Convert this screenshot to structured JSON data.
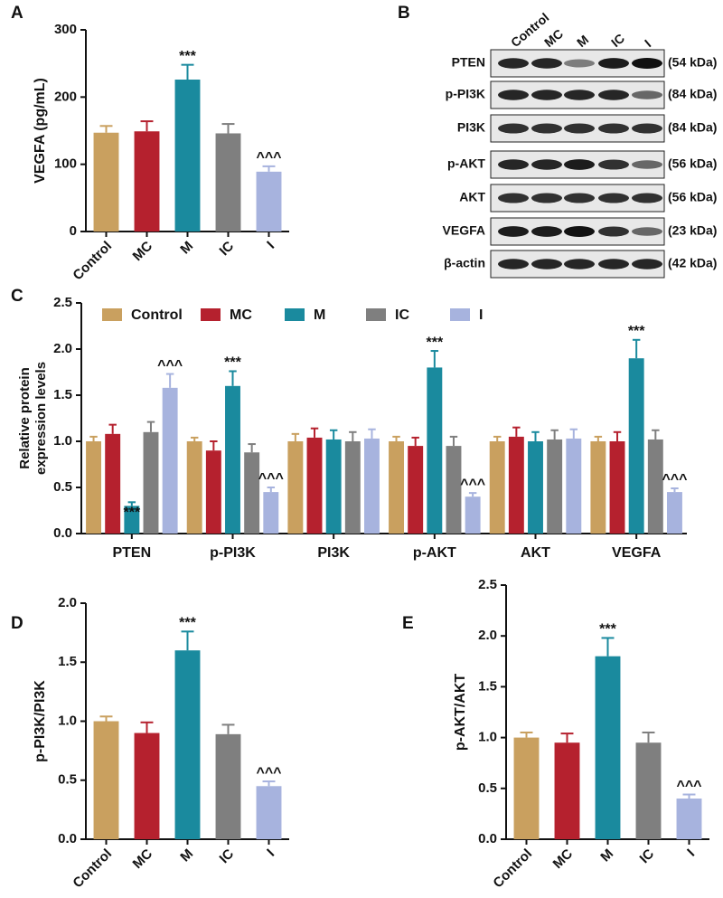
{
  "chart_data": [
    {
      "type": "bar",
      "panel": "A",
      "ylabel": "VEGFA (pg/mL)",
      "categories": [
        "Control",
        "MC",
        "M",
        "IC",
        "I"
      ],
      "values": [
        147,
        149,
        226,
        146,
        89
      ],
      "errors": [
        10,
        15,
        22,
        14,
        8
      ],
      "annotations": [
        null,
        null,
        "***",
        null,
        "^^^"
      ],
      "colors": [
        "#c9a05f",
        "#b5212e",
        "#1a8a9e",
        "#7f7f7f",
        "#a7b3de"
      ],
      "ylim": [
        0,
        300
      ],
      "yticks": [
        0,
        100,
        200,
        300
      ]
    },
    {
      "type": "grouped-bar",
      "panel": "C",
      "ylabel": [
        "Relative protein",
        "expression levels"
      ],
      "categories": [
        "PTEN",
        "p-PI3K",
        "PI3K",
        "p-AKT",
        "AKT",
        "VEGFA"
      ],
      "series": [
        {
          "name": "Control",
          "color": "#c9a05f",
          "values": [
            1.0,
            1.0,
            1.0,
            1.0,
            1.0,
            1.0
          ],
          "errors": [
            0.05,
            0.04,
            0.08,
            0.05,
            0.05,
            0.05
          ],
          "annotations": [
            null,
            null,
            null,
            null,
            null,
            null
          ]
        },
        {
          "name": "MC",
          "color": "#b5212e",
          "values": [
            1.08,
            0.9,
            1.04,
            0.95,
            1.05,
            1.0
          ],
          "errors": [
            0.1,
            0.1,
            0.1,
            0.09,
            0.1,
            0.1
          ],
          "annotations": [
            null,
            null,
            null,
            null,
            null,
            null
          ]
        },
        {
          "name": "M",
          "color": "#1a8a9e",
          "values": [
            0.3,
            1.6,
            1.02,
            1.8,
            1.0,
            1.9
          ],
          "errors": [
            0.04,
            0.16,
            0.1,
            0.18,
            0.1,
            0.2
          ],
          "annotations": [
            "***",
            "***",
            null,
            "***",
            null,
            "***"
          ]
        },
        {
          "name": "IC",
          "color": "#7f7f7f",
          "values": [
            1.1,
            0.88,
            1.0,
            0.95,
            1.02,
            1.02
          ],
          "errors": [
            0.11,
            0.09,
            0.1,
            0.1,
            0.1,
            0.1
          ],
          "annotations": [
            null,
            null,
            null,
            null,
            null,
            null
          ]
        },
        {
          "name": "I",
          "color": "#a7b3de",
          "values": [
            1.58,
            0.45,
            1.03,
            0.4,
            1.03,
            0.45
          ],
          "errors": [
            0.15,
            0.05,
            0.1,
            0.04,
            0.1,
            0.04
          ],
          "annotations": [
            "^^^",
            "^^^",
            null,
            "^^^",
            null,
            "^^^"
          ]
        }
      ],
      "legend": "top",
      "ylim": [
        0,
        2.5
      ],
      "yticks": [
        {
          "value": 0,
          "label": "0.0"
        },
        0.5,
        {
          "value": 1,
          "label": "1.0"
        },
        1.5,
        {
          "value": 2,
          "label": "2.0"
        },
        2.5
      ]
    },
    {
      "type": "bar",
      "panel": "D",
      "ylabel": "p-PI3K/PI3K",
      "categories": [
        "Control",
        "MC",
        "M",
        "IC",
        "I"
      ],
      "values": [
        1.0,
        0.9,
        1.6,
        0.89,
        0.45
      ],
      "errors": [
        0.04,
        0.09,
        0.16,
        0.08,
        0.04
      ],
      "annotations": [
        null,
        null,
        "***",
        null,
        "^^^"
      ],
      "colors": [
        "#c9a05f",
        "#b5212e",
        "#1a8a9e",
        "#7f7f7f",
        "#a7b3de"
      ],
      "ylim": [
        0,
        2
      ],
      "yticks": [
        {
          "value": 0,
          "label": "0.0"
        },
        0.5,
        {
          "value": 1,
          "label": "1.0"
        },
        1.5,
        {
          "value": 2,
          "label": "2.0"
        }
      ]
    },
    {
      "type": "bar",
      "panel": "E",
      "ylabel": "p-AKT/AKT",
      "categories": [
        "Control",
        "MC",
        "M",
        "IC",
        "I"
      ],
      "values": [
        1.0,
        0.95,
        1.8,
        0.95,
        0.4
      ],
      "errors": [
        0.05,
        0.09,
        0.18,
        0.1,
        0.04
      ],
      "annotations": [
        null,
        null,
        "***",
        null,
        "^^^"
      ],
      "colors": [
        "#c9a05f",
        "#b5212e",
        "#1a8a9e",
        "#7f7f7f",
        "#a7b3de"
      ],
      "ylim": [
        0,
        2.5
      ],
      "yticks": [
        {
          "value": 0,
          "label": "0.0"
        },
        0.5,
        {
          "value": 1,
          "label": "1.0"
        },
        1.5,
        {
          "value": 2,
          "label": "2.0"
        },
        2.5
      ]
    }
  ],
  "blot": {
    "panel": "B",
    "lanes": [
      "Control",
      "MC",
      "M",
      "IC",
      "I"
    ],
    "proteins": [
      "PTEN",
      "p-PI3K",
      "PI3K",
      "p-AKT",
      "AKT",
      "VEGFA",
      "β-actin"
    ],
    "sizes": [
      "(54 kDa)",
      "(84 kDa)",
      "(84 kDa)",
      "(56 kDa)",
      "(56 kDa)",
      "(23 kDa)",
      "(42 kDa)"
    ]
  }
}
